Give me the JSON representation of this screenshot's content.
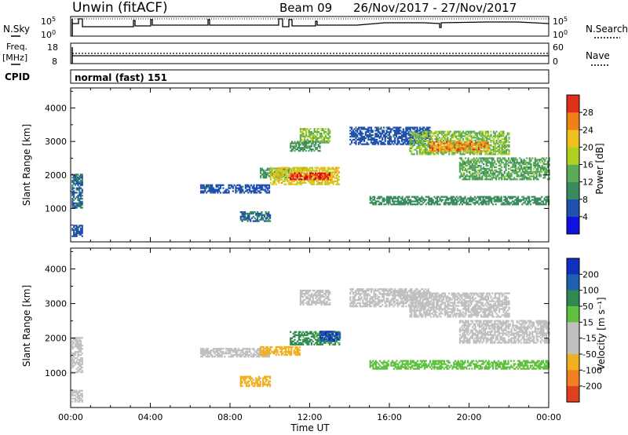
{
  "header": {
    "station": "Unwin (fitACF)",
    "beam": "Beam 09",
    "date_range": "26/Nov/2017 - 27/Nov/2017"
  },
  "param_panels": {
    "nsky_label": "N.Sky",
    "nsearch_label": "N.Search",
    "noise_tick_top": "10^5",
    "noise_tick_bottom": "10^0",
    "noise_tick_top_right": "10^5",
    "noise_tick_bottom_right": "10^0",
    "freq_label_line1": "Freq.",
    "freq_label_line2": "[MHz]",
    "freq_ticks": [
      "18",
      "8"
    ],
    "nave_label": "Nave",
    "nave_ticks": [
      "60",
      "0"
    ],
    "cpid_label": "CPID",
    "cpid_text": "normal (fast) 151"
  },
  "colors": {
    "power_scale": [
      "#1010e0",
      "#2050b0",
      "#3a8a60",
      "#5aaa5a",
      "#b0d020",
      "#f0c020",
      "#f08018",
      "#e03018",
      "#e00000"
    ],
    "velocity_scale": [
      "#1030c0",
      "#2060b0",
      "#308a50",
      "#60c040",
      "#c0c0c0",
      "#c0c0c0",
      "#f0b020",
      "#f08020",
      "#e04020",
      "#e00000"
    ]
  },
  "chart_data": [
    {
      "type": "heatmap",
      "name": "power-panel",
      "ylabel": "Slant Range [km]",
      "yticks": [
        "1000",
        "2000",
        "3000",
        "4000"
      ],
      "ylim": [
        0,
        4600
      ],
      "xlim": [
        "00:00",
        "24:00"
      ],
      "colorbar": {
        "label": "Power [dB]",
        "ticks": [
          "4",
          "8",
          "12",
          "16",
          "20",
          "24",
          "28"
        ],
        "range": [
          0,
          32
        ]
      },
      "regions": [
        {
          "t0": 0.05,
          "t1": 0.6,
          "r0": 1000,
          "r1": 2000,
          "v": 7
        },
        {
          "t0": 0.05,
          "t1": 0.6,
          "r0": 150,
          "r1": 500,
          "v": 6
        },
        {
          "t0": 6.5,
          "t1": 10.0,
          "r0": 1450,
          "r1": 1700,
          "v": 6
        },
        {
          "t0": 8.5,
          "t1": 10.0,
          "r0": 600,
          "r1": 900,
          "v": 7
        },
        {
          "t0": 9.5,
          "t1": 11.0,
          "r0": 1900,
          "r1": 2200,
          "v": 10
        },
        {
          "t0": 10.0,
          "t1": 13.5,
          "r0": 1700,
          "r1": 2200,
          "v": 18
        },
        {
          "t0": 11.0,
          "t1": 13.0,
          "r0": 1850,
          "r1": 2050,
          "v": 27
        },
        {
          "t0": 11.5,
          "t1": 13.0,
          "r0": 2950,
          "r1": 3400,
          "v": 14
        },
        {
          "t0": 11.0,
          "t1": 12.5,
          "r0": 2700,
          "r1": 3000,
          "v": 10
        },
        {
          "t0": 14.0,
          "t1": 18.0,
          "r0": 2900,
          "r1": 3400,
          "v": 6
        },
        {
          "t0": 17.0,
          "t1": 22.0,
          "r0": 2600,
          "r1": 3300,
          "v": 14
        },
        {
          "t0": 18.0,
          "t1": 21.0,
          "r0": 2700,
          "r1": 3000,
          "v": 22
        },
        {
          "t0": 19.5,
          "t1": 24.0,
          "r0": 1850,
          "r1": 2500,
          "v": 12
        },
        {
          "t0": 15.0,
          "t1": 24.0,
          "r0": 1100,
          "r1": 1350,
          "v": 9
        }
      ]
    },
    {
      "type": "heatmap",
      "name": "velocity-panel",
      "ylabel": "Slant Range [km]",
      "yticks": [
        "1000",
        "2000",
        "3000",
        "4000"
      ],
      "ylim": [
        0,
        4600
      ],
      "xlim": [
        "00:00",
        "24:00"
      ],
      "xticks": [
        "00:00",
        "04:00",
        "08:00",
        "12:00",
        "16:00",
        "20:00",
        "00:00"
      ],
      "xlabel": "Time UT",
      "colorbar": {
        "label": "Velocity [m s⁻¹]",
        "ticks": [
          "200",
          "100",
          "50",
          "15",
          "-15",
          "-50",
          "-100",
          "-200"
        ],
        "range": [
          -250,
          250
        ]
      },
      "regions": [
        {
          "t0": 0.05,
          "t1": 0.6,
          "r0": 1000,
          "r1": 2000,
          "v": 0
        },
        {
          "t0": 0.05,
          "t1": 0.6,
          "r0": 150,
          "r1": 500,
          "v": 0
        },
        {
          "t0": 6.5,
          "t1": 10.0,
          "r0": 1450,
          "r1": 1700,
          "v": 0
        },
        {
          "t0": 8.5,
          "t1": 10.0,
          "r0": 600,
          "r1": 900,
          "v": -40
        },
        {
          "t0": 9.5,
          "t1": 11.5,
          "r0": 1500,
          "r1": 1750,
          "v": -40
        },
        {
          "t0": 11.0,
          "t1": 13.5,
          "r0": 1800,
          "r1": 2200,
          "v": 60
        },
        {
          "t0": 12.5,
          "t1": 13.5,
          "r0": 1900,
          "r1": 2200,
          "v": 150
        },
        {
          "t0": 11.5,
          "t1": 13.0,
          "r0": 2950,
          "r1": 3400,
          "v": 0
        },
        {
          "t0": 14.0,
          "t1": 18.0,
          "r0": 2900,
          "r1": 3400,
          "v": 0
        },
        {
          "t0": 17.0,
          "t1": 22.0,
          "r0": 2600,
          "r1": 3300,
          "v": 0
        },
        {
          "t0": 19.5,
          "t1": 24.0,
          "r0": 1850,
          "r1": 2500,
          "v": 0
        },
        {
          "t0": 15.0,
          "t1": 24.0,
          "r0": 1100,
          "r1": 1350,
          "v": 30
        }
      ]
    }
  ]
}
